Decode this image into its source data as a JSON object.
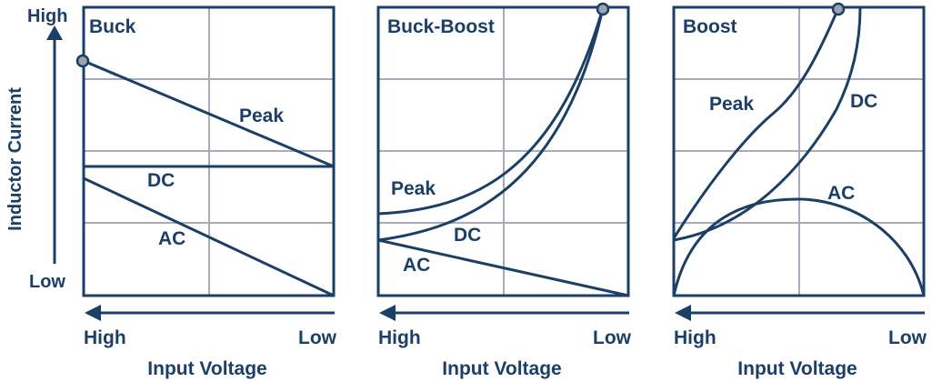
{
  "y_axis": {
    "label": "Inductor Current",
    "high": "High",
    "low": "Low"
  },
  "panels": [
    {
      "id": "buck",
      "title": "Buck",
      "curves": {
        "peak": "Peak",
        "dc": "DC",
        "ac": "AC"
      },
      "x_axis": {
        "high": "High",
        "low": "Low",
        "label": "Input Voltage"
      }
    },
    {
      "id": "buck-boost",
      "title": "Buck-Boost",
      "curves": {
        "peak": "Peak",
        "dc": "DC",
        "ac": "AC"
      },
      "x_axis": {
        "high": "High",
        "low": "Low",
        "label": "Input Voltage"
      }
    },
    {
      "id": "boost",
      "title": "Boost",
      "curves": {
        "peak": "Peak",
        "dc": "DC",
        "ac": "AC"
      },
      "x_axis": {
        "high": "High",
        "low": "Low",
        "label": "Input Voltage"
      }
    }
  ],
  "colors": {
    "line": "#1b3f66",
    "grid": "#a9abbd",
    "marker_fill": "#9aa3ae",
    "background": "#ffffff"
  }
}
